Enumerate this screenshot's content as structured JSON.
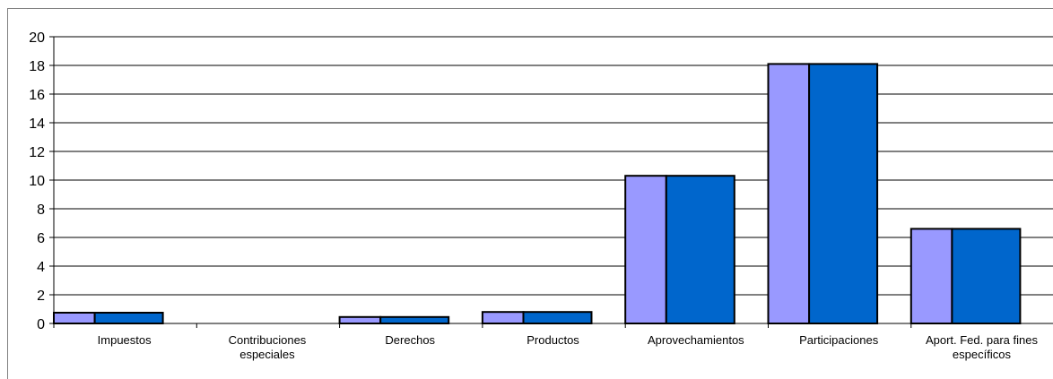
{
  "chart_data": {
    "type": "bar",
    "categories": [
      [
        "Impuestos"
      ],
      [
        "Contribuciones",
        "especiales"
      ],
      [
        "Derechos"
      ],
      [
        "Productos"
      ],
      [
        "Aprovechamientos"
      ],
      [
        "Participaciones"
      ],
      [
        "Aport. Fed. para fines",
        "específicos"
      ]
    ],
    "series": [
      {
        "values": [
          0.75,
          0,
          0.45,
          0.8,
          10.3,
          18.1,
          6.6
        ],
        "color": "#9999ff"
      },
      {
        "values": [
          0.75,
          0,
          0.45,
          0.8,
          10.3,
          18.1,
          6.6
        ],
        "color": "#0066cc"
      }
    ],
    "yticks": [
      "0",
      "2",
      "4",
      "6",
      "8",
      "10",
      "12",
      "14",
      "16",
      "18",
      "20"
    ],
    "ylim": [
      0,
      20
    ],
    "grid": true,
    "legend": "none"
  }
}
